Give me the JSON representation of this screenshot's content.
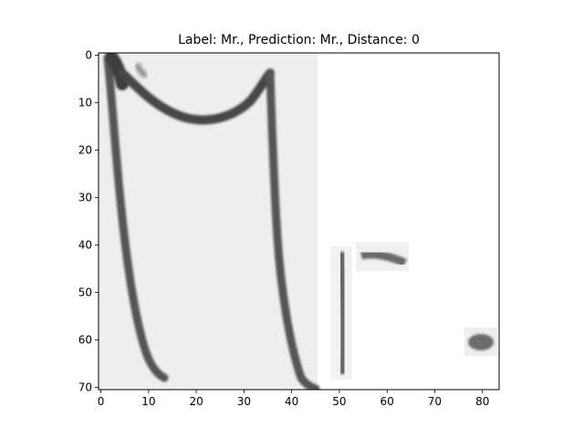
{
  "figure": {
    "title": "Label: Mr., Prediction: Mr., Distance: 0",
    "label": "Mr.",
    "prediction": "Mr.",
    "distance": 0
  },
  "axes": {
    "x_ticks": [
      0,
      10,
      20,
      30,
      40,
      50,
      60,
      70,
      80
    ],
    "y_ticks": [
      0,
      10,
      20,
      30,
      40,
      50,
      60,
      70
    ],
    "xlim": [
      -0.5,
      83.5
    ],
    "ylim": [
      70.5,
      -0.5
    ],
    "y_inverted": true,
    "grid": false
  },
  "image_content": {
    "description_colors": {
      "paper": "#efefef",
      "ink_dark": "#3a3a3a",
      "ink_mid": "#707070",
      "background": "#ffffff"
    }
  }
}
